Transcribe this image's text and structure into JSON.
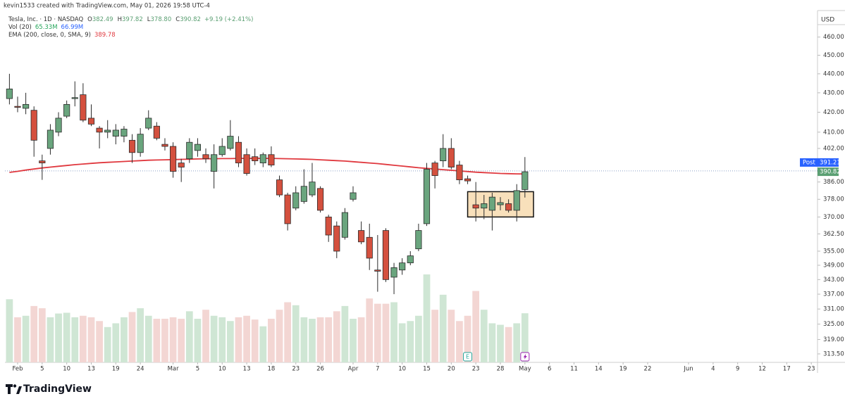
{
  "watermark": "kevin1533 created with TradingView.com, May 01, 2026 19:58 UTC-4",
  "brand": "TradingView",
  "chart_data": {
    "type": "candlestick",
    "header": {
      "symbol": "Tesla, Inc. · 1D · NASDAQ",
      "ohlc": [
        [
          "O",
          "382.49"
        ],
        [
          "H",
          "397.82"
        ],
        [
          "L",
          "378.80"
        ],
        [
          "C",
          "390.82"
        ]
      ],
      "change": "+9.19 (+2.41%)"
    },
    "currency": "USD",
    "log_scale": true,
    "grid": false,
    "x": [
      -1,
      0,
      1,
      2,
      3,
      4,
      5,
      6,
      7,
      8,
      9,
      10,
      11,
      12,
      13,
      14,
      15,
      16,
      17,
      18,
      19,
      20,
      21,
      22,
      23,
      24,
      25,
      26,
      27,
      28,
      29,
      30,
      31,
      32,
      33,
      34,
      35,
      36,
      37,
      38,
      39,
      40,
      41,
      42,
      43,
      44,
      45,
      46,
      47,
      48,
      49,
      50,
      51,
      52,
      53,
      54,
      55,
      56,
      57,
      58,
      59,
      60,
      61,
      62
    ],
    "open": [
      427,
      423,
      422,
      421,
      396,
      402,
      410,
      418,
      427,
      429,
      417,
      412,
      410,
      408,
      408,
      406,
      400,
      412,
      413,
      404,
      403,
      395,
      397,
      401,
      399,
      391,
      399,
      402,
      405,
      399,
      398,
      395,
      399,
      387,
      380,
      374,
      377,
      380,
      383,
      370,
      366,
      361,
      378,
      364,
      361,
      347,
      364,
      344,
      347,
      350,
      356,
      367,
      395,
      396,
      402,
      394,
      387.5,
      375.5,
      374,
      373,
      375.5,
      376,
      373,
      382.49
    ],
    "high": [
      440,
      428,
      430,
      423,
      399,
      414,
      420,
      426,
      436,
      435,
      424,
      413,
      416,
      414,
      413,
      409,
      412,
      421,
      415,
      407,
      405,
      397,
      407,
      407,
      402,
      404,
      407,
      416,
      408,
      402,
      402,
      400,
      403,
      389,
      381,
      384,
      392,
      395,
      384,
      371,
      368,
      374,
      384,
      368,
      367,
      362,
      365,
      350,
      352,
      355,
      367,
      395,
      396,
      409,
      407,
      396,
      389,
      386,
      380,
      381,
      379,
      378,
      385,
      397.82
    ],
    "low": [
      424,
      420,
      419,
      398,
      387,
      399,
      408,
      417,
      423,
      415,
      413,
      402,
      407,
      404,
      405,
      395,
      398,
      411,
      406,
      401,
      388,
      386,
      395,
      398,
      395,
      383,
      398,
      401,
      393,
      389,
      394,
      393,
      393,
      379,
      364,
      373,
      376,
      379,
      372,
      359,
      352,
      360,
      377,
      358,
      347,
      338,
      342,
      337,
      345,
      349,
      355,
      366,
      383,
      393,
      392,
      385,
      385,
      368,
      369,
      364,
      373,
      372,
      368,
      378.8
    ],
    "close": [
      432,
      422.5,
      424,
      406,
      395,
      411,
      417,
      424,
      427.5,
      416,
      414,
      410,
      411,
      411,
      411.5,
      400,
      409,
      417,
      407,
      403,
      391,
      393,
      405,
      404,
      397,
      399,
      403,
      408,
      395,
      390,
      396,
      399,
      394,
      380,
      367,
      381,
      384,
      386,
      373,
      362,
      355,
      372,
      381,
      359,
      352,
      346.5,
      343,
      348,
      350,
      353,
      364,
      392,
      389,
      402,
      393,
      387,
      386.5,
      374,
      376,
      379,
      376.5,
      373,
      382,
      390.82
    ],
    "up_color": "#6aa57e",
    "down_color": "#d4503e",
    "wick_color": "#2b2b2b",
    "ema": {
      "name": "EMA (200, close, 0, SMA, 9)",
      "last": "389.78",
      "color": "#e0383e",
      "values": [
        390.5,
        391.0,
        391.6,
        392.1,
        392.6,
        393.0,
        393.4,
        393.8,
        394.2,
        394.5,
        394.8,
        395.1,
        395.3,
        395.5,
        395.7,
        395.9,
        396.1,
        396.3,
        396.4,
        396.5,
        396.6,
        396.7,
        396.8,
        396.9,
        397.0,
        397.0,
        397.1,
        397.1,
        397.2,
        397.2,
        397.2,
        397.2,
        397.2,
        397.1,
        397.0,
        396.9,
        396.8,
        396.7,
        396.5,
        396.3,
        396.1,
        395.9,
        395.6,
        395.3,
        395.0,
        394.7,
        394.3,
        393.9,
        393.5,
        393.1,
        392.7,
        392.4,
        392.1,
        391.8,
        391.5,
        391.2,
        390.9,
        390.6,
        390.4,
        390.2,
        390.0,
        389.9,
        389.8,
        389.78
      ]
    },
    "volume": {
      "name": "Vol (20)",
      "last": "65.33M",
      "ma": "66.99M",
      "ma_color": "#2962ff",
      "last_color": "#26a65b",
      "up_color": "#cfe6d4",
      "down_color": "#f3d6d3",
      "values": [
        84,
        60,
        62,
        75,
        72,
        60,
        65,
        66,
        60,
        62,
        60,
        55,
        47,
        52,
        60,
        67,
        72,
        62,
        58,
        58,
        60,
        58,
        68,
        58,
        70,
        62,
        60,
        55,
        60,
        62,
        57,
        48,
        58,
        70,
        80,
        76,
        60,
        58,
        60,
        60,
        68,
        75,
        58,
        60,
        85,
        78,
        78,
        80,
        52,
        55,
        62,
        117,
        70,
        90,
        70,
        55,
        62,
        95,
        70,
        52,
        50,
        47,
        52,
        65.33
      ]
    },
    "xlim": [
      -1.55,
      97.76
    ],
    "ylim": [
      310.3,
      475
    ],
    "yticks": [
      {
        "value": 460,
        "label": "460.00"
      },
      {
        "value": 450,
        "label": "450.00"
      },
      {
        "value": 440,
        "label": "440.00"
      },
      {
        "value": 430,
        "label": "430.00"
      },
      {
        "value": 420,
        "label": "420.00"
      },
      {
        "value": 410,
        "label": "410.00"
      },
      {
        "value": 402,
        "label": "402.00"
      },
      {
        "value": 386,
        "label": "386.00"
      },
      {
        "value": 378,
        "label": "378.00"
      },
      {
        "value": 370,
        "label": "370.00"
      },
      {
        "value": 362.5,
        "label": "362.50"
      },
      {
        "value": 355,
        "label": "355.00"
      },
      {
        "value": 349,
        "label": "349.00"
      },
      {
        "value": 343,
        "label": "343.00"
      },
      {
        "value": 337,
        "label": "337.00"
      },
      {
        "value": 331,
        "label": "331.00"
      },
      {
        "value": 325,
        "label": "325.00"
      },
      {
        "value": 319,
        "label": "319.00"
      },
      {
        "value": 313.5,
        "label": "313.50"
      }
    ],
    "xticks": [
      {
        "value": 0,
        "label": "Feb"
      },
      {
        "value": 3,
        "label": "5"
      },
      {
        "value": 6,
        "label": "10"
      },
      {
        "value": 9,
        "label": "13"
      },
      {
        "value": 12,
        "label": "19"
      },
      {
        "value": 15,
        "label": "24"
      },
      {
        "value": 19,
        "label": "Mar"
      },
      {
        "value": 22,
        "label": "5"
      },
      {
        "value": 25,
        "label": "10"
      },
      {
        "value": 28,
        "label": "13"
      },
      {
        "value": 31,
        "label": "18"
      },
      {
        "value": 34,
        "label": "23"
      },
      {
        "value": 37,
        "label": "26"
      },
      {
        "value": 41,
        "label": "Apr"
      },
      {
        "value": 44,
        "label": "7"
      },
      {
        "value": 47,
        "label": "10"
      },
      {
        "value": 50,
        "label": "15"
      },
      {
        "value": 53,
        "label": "20"
      },
      {
        "value": 56,
        "label": "23"
      },
      {
        "value": 59,
        "label": "28"
      },
      {
        "value": 62,
        "label": "May"
      },
      {
        "value": 65,
        "label": "6"
      },
      {
        "value": 68,
        "label": "11"
      },
      {
        "value": 71,
        "label": "14"
      },
      {
        "value": 74,
        "label": "19"
      },
      {
        "value": 77,
        "label": "22"
      },
      {
        "value": 82,
        "label": "Jun"
      },
      {
        "value": 85,
        "label": "4"
      },
      {
        "value": 88,
        "label": "9"
      },
      {
        "value": 91,
        "label": "12"
      },
      {
        "value": 94,
        "label": "17"
      },
      {
        "value": 97,
        "label": "23"
      }
    ],
    "post": {
      "label": "Post",
      "value": 391.21,
      "color": "#2962ff"
    },
    "last_price": {
      "value": 390.82,
      "color": "#5a9f72"
    },
    "highlight": {
      "xlim": [
        55.0,
        63.05
      ],
      "ylim": [
        370,
        381.5
      ],
      "fill": "#f6d6a4",
      "stroke": "#111111"
    },
    "events": [
      {
        "x": 55,
        "label": "E",
        "color": "#26a69a"
      },
      {
        "x": 62,
        "color": "#9c27b0"
      }
    ]
  }
}
